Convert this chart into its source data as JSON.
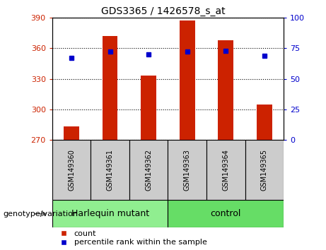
{
  "title": "GDS3365 / 1426578_s_at",
  "samples": [
    "GSM149360",
    "GSM149361",
    "GSM149362",
    "GSM149363",
    "GSM149364",
    "GSM149365"
  ],
  "count_values": [
    283,
    372,
    333,
    387,
    368,
    305
  ],
  "percentile_values": [
    67,
    72,
    70,
    72,
    73,
    69
  ],
  "ylim_left": [
    270,
    390
  ],
  "ylim_right": [
    0,
    100
  ],
  "yticks_left": [
    270,
    300,
    330,
    360,
    390
  ],
  "yticks_right": [
    0,
    25,
    50,
    75,
    100
  ],
  "bar_color": "#cc2200",
  "dot_color": "#0000cc",
  "group1_label": "Harlequin mutant",
  "group2_label": "control",
  "group1_color": "#90EE90",
  "group2_color": "#66dd66",
  "genotype_label": "genotype/variation",
  "legend_count": "count",
  "legend_percentile": "percentile rank within the sample",
  "left_tick_color": "#cc2200",
  "right_tick_color": "#0000cc",
  "bar_width": 0.4,
  "group1_indices": [
    0,
    1,
    2
  ],
  "group2_indices": [
    3,
    4,
    5
  ],
  "label_bg_color": "#cccccc",
  "tick_label_fontsize": 8,
  "title_fontsize": 10,
  "genotype_fontsize": 8,
  "group_fontsize": 9,
  "legend_fontsize": 8
}
